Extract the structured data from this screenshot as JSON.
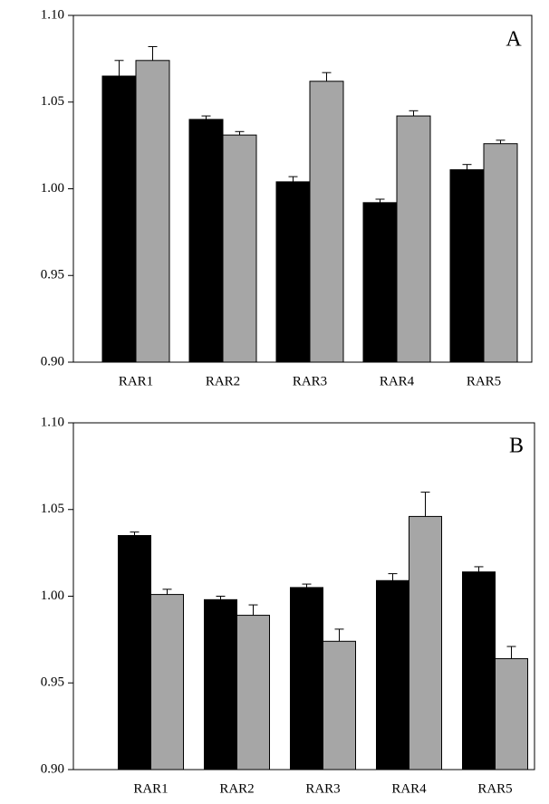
{
  "chart_data": [
    {
      "type": "bar",
      "annotation": "A",
      "categories": [
        "RAR1",
        "RAR2",
        "RAR3",
        "RAR4",
        "RAR5"
      ],
      "series": [
        {
          "color": "#000000",
          "values": [
            1.065,
            1.04,
            1.004,
            0.992,
            1.011
          ],
          "errors": [
            0.009,
            0.002,
            0.003,
            0.002,
            0.003
          ]
        },
        {
          "color": "#a6a6a6",
          "values": [
            1.074,
            1.031,
            1.062,
            1.042,
            1.026
          ],
          "errors": [
            0.008,
            0.002,
            0.005,
            0.003,
            0.002
          ]
        }
      ],
      "ylim": [
        0.9,
        1.1
      ],
      "yticks": [
        {
          "value": 0.9,
          "label": "0.90"
        },
        0.95,
        {
          "value": 1.0,
          "label": "1.00"
        },
        1.05,
        {
          "value": 1.1,
          "label": "1.10"
        }
      ]
    },
    {
      "type": "bar",
      "annotation": "B",
      "categories": [
        "RAR1",
        "RAR2",
        "RAR3",
        "RAR4",
        "RAR5"
      ],
      "series": [
        {
          "color": "#000000",
          "values": [
            1.035,
            0.998,
            1.005,
            1.009,
            1.014
          ],
          "errors": [
            0.002,
            0.002,
            0.002,
            0.004,
            0.003
          ]
        },
        {
          "color": "#a6a6a6",
          "values": [
            1.001,
            0.989,
            0.974,
            1.046,
            0.964
          ],
          "errors": [
            0.003,
            0.006,
            0.007,
            0.014,
            0.007
          ]
        }
      ],
      "ylim": [
        0.9,
        1.1
      ],
      "yticks": [
        {
          "value": 0.9,
          "label": "0.90"
        },
        0.95,
        {
          "value": 1.0,
          "label": "1.00"
        },
        1.05,
        {
          "value": 1.1,
          "label": "1.10"
        }
      ]
    }
  ]
}
